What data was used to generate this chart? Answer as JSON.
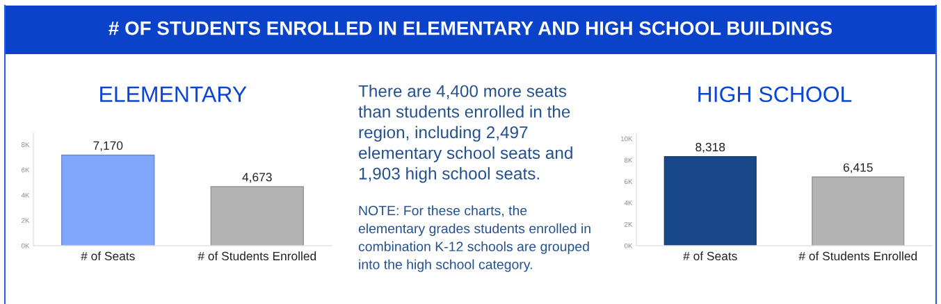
{
  "chart_data": [
    {
      "type": "other",
      "title": "# OF STUDENTS ENROLLED IN ELEMENTARY AND HIGH SCHOOL BUILDINGS"
    },
    {
      "type": "bar",
      "title": "ELEMENTARY",
      "categories": [
        "# of Seats",
        "# of Students Enrolled"
      ],
      "values": [
        7170,
        4673
      ],
      "colors": [
        "#80a6fb",
        "#b3b3b3"
      ],
      "value_labels": [
        "7,170",
        "4,673"
      ],
      "ylim": [
        0,
        8900
      ],
      "yticks": [
        {
          "value": 0,
          "label": "0K"
        },
        {
          "value": 2000,
          "label": "2K"
        },
        {
          "value": 4000,
          "label": "4K"
        },
        {
          "value": 6000,
          "label": "6K"
        },
        {
          "value": 8000,
          "label": "8K"
        }
      ]
    },
    {
      "type": "other",
      "annotations": [
        "There are 4,400 more seats\nthan students enrolled in the\nregion, including 2,497\nelementary school seats and\n1,903 high school seats.",
        "NOTE: For these charts, the\nelementary grades students enrolled in\ncombination K-12 schools are grouped\ninto the high school category."
      ]
    },
    {
      "type": "bar",
      "title": "HIGH SCHOOL",
      "categories": [
        "# of Seats",
        "# of Students Enrolled"
      ],
      "values": [
        8318,
        6415
      ],
      "colors": [
        "#19488a",
        "#b3b3b3"
      ],
      "value_labels": [
        "8,318",
        "6,415"
      ],
      "ylim": [
        0,
        10500
      ],
      "yticks": [
        {
          "value": 0,
          "label": "0K"
        },
        {
          "value": 2000,
          "label": "2K"
        },
        {
          "value": 4000,
          "label": "4K"
        },
        {
          "value": 6000,
          "label": "6K"
        },
        {
          "value": 8000,
          "label": "8K"
        },
        {
          "value": 10000,
          "label": "10K"
        }
      ]
    }
  ]
}
